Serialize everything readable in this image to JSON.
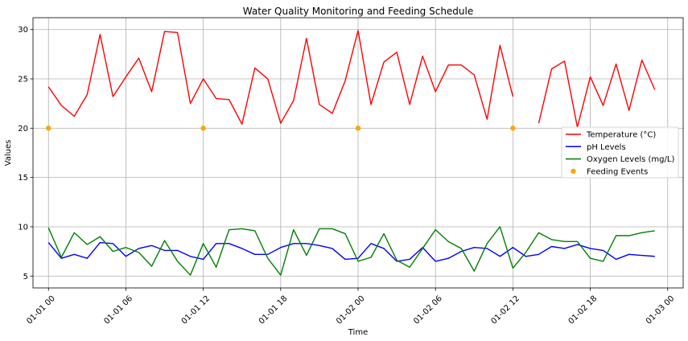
{
  "chart_data": {
    "type": "line",
    "title": "Water Quality Monitoring and Feeding Schedule",
    "xlabel": "Time",
    "ylabel": "Values",
    "grid": true,
    "legend_position": "center-right",
    "xlim": [
      -1.2,
      49.2
    ],
    "ylim": [
      3.8,
      31.2
    ],
    "x_ticks": [
      {
        "pos": 0,
        "label": "01-01 00"
      },
      {
        "pos": 6,
        "label": "01-01 06"
      },
      {
        "pos": 12,
        "label": "01-01 12"
      },
      {
        "pos": 18,
        "label": "01-01 18"
      },
      {
        "pos": 24,
        "label": "01-02 00"
      },
      {
        "pos": 30,
        "label": "01-02 06"
      },
      {
        "pos": 36,
        "label": "01-02 12"
      },
      {
        "pos": 42,
        "label": "01-02 18"
      },
      {
        "pos": 48,
        "label": "01-03 00"
      }
    ],
    "y_ticks": [
      5,
      10,
      15,
      20,
      25,
      30
    ],
    "x_hours": [
      0,
      1,
      2,
      3,
      4,
      5,
      6,
      7,
      8,
      9,
      10,
      11,
      12,
      13,
      14,
      15,
      16,
      17,
      18,
      19,
      20,
      21,
      22,
      23,
      24,
      25,
      26,
      27,
      28,
      29,
      30,
      31,
      32,
      33,
      34,
      35,
      36,
      37,
      38,
      39,
      40,
      41,
      42,
      43,
      44,
      45,
      46,
      47
    ],
    "series": [
      {
        "name": "Temperature (°C)",
        "color": "#ff0000",
        "kind": "line",
        "values": [
          24.2,
          22.3,
          21.2,
          23.4,
          29.5,
          23.2,
          25.2,
          27.1,
          23.7,
          29.8,
          29.7,
          22.5,
          25.0,
          23.0,
          22.9,
          20.4,
          26.1,
          25.0,
          20.5,
          22.8,
          29.1,
          22.4,
          21.5,
          24.8,
          29.9,
          22.4,
          26.7,
          27.7,
          22.4,
          27.3,
          23.7,
          26.4,
          26.4,
          25.4,
          20.9,
          28.4,
          23.2,
          null,
          20.5,
          26.0,
          26.8,
          20.1,
          25.2,
          22.3,
          26.5,
          21.8,
          26.9,
          23.9
        ]
      },
      {
        "name": "pH Levels",
        "color": "#0000ff",
        "kind": "line",
        "values": [
          8.4,
          6.8,
          7.2,
          6.8,
          8.4,
          8.3,
          7.0,
          7.8,
          8.1,
          7.6,
          7.6,
          7.0,
          6.7,
          8.3,
          8.3,
          7.8,
          7.2,
          7.2,
          7.9,
          8.3,
          8.3,
          8.1,
          7.8,
          6.7,
          6.8,
          8.3,
          7.8,
          6.5,
          6.7,
          7.9,
          6.5,
          6.8,
          7.5,
          7.9,
          7.8,
          7.0,
          7.9,
          7.0,
          7.2,
          8.0,
          7.8,
          8.2,
          7.8,
          7.6,
          6.7,
          7.2,
          7.1,
          7.0
        ]
      },
      {
        "name": "Oxygen Levels (mg/L)",
        "color": "#008000",
        "kind": "line",
        "values": [
          9.9,
          6.9,
          9.4,
          8.2,
          9.0,
          7.5,
          7.9,
          7.4,
          6.0,
          8.6,
          6.5,
          5.1,
          8.3,
          5.9,
          9.7,
          9.8,
          9.6,
          6.8,
          5.1,
          9.7,
          7.1,
          9.8,
          9.8,
          9.3,
          6.5,
          6.9,
          9.3,
          6.6,
          5.9,
          7.8,
          9.7,
          8.5,
          7.8,
          5.5,
          8.3,
          10.0,
          5.8,
          7.4,
          9.4,
          8.7,
          8.5,
          8.5,
          6.8,
          6.5,
          9.1,
          9.1,
          9.4,
          9.6
        ]
      },
      {
        "name": "Feeding Events",
        "color": "#ffa500",
        "kind": "scatter",
        "x_hours": [
          0,
          12,
          24,
          36
        ],
        "values": [
          20,
          20,
          20,
          20
        ]
      }
    ]
  }
}
